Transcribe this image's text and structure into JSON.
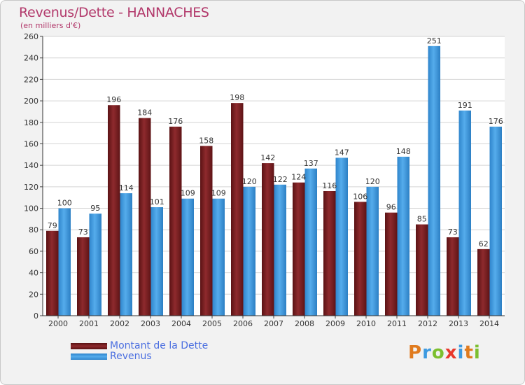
{
  "title": "Revenus/Dette - HANNACHES",
  "subtitle": "(en milliers d'€)",
  "colors": {
    "title": "#b2396b",
    "dette": "#7a1f22",
    "revenus": "#3d9ae0",
    "legend_text": "#4a6ee0"
  },
  "legend": {
    "dette_label": "Montant de la Dette",
    "revenus_label": "Revenus"
  },
  "logo": {
    "letters": [
      "P",
      "r",
      "o",
      "x",
      "i",
      "t",
      "i"
    ],
    "colors": [
      "#e07b1e",
      "#3d9ae0",
      "#7cbf2f",
      "#e8382c",
      "#3d9ae0",
      "#e07b1e",
      "#7cbf2f"
    ]
  },
  "chart_data": {
    "type": "bar",
    "categories": [
      "2000",
      "2001",
      "2002",
      "2003",
      "2004",
      "2005",
      "2006",
      "2007",
      "2008",
      "2009",
      "2010",
      "2011",
      "2012",
      "2013",
      "2014"
    ],
    "series": [
      {
        "name": "Montant de la Dette",
        "values": [
          79,
          73,
          196,
          184,
          176,
          158,
          198,
          142,
          124,
          116,
          106,
          96,
          85,
          73,
          62
        ]
      },
      {
        "name": "Revenus",
        "values": [
          100,
          95,
          114,
          101,
          109,
          109,
          120,
          122,
          137,
          147,
          120,
          148,
          251,
          191,
          176
        ]
      }
    ],
    "ylim": [
      0,
      260
    ],
    "yticks": [
      0,
      20,
      40,
      60,
      80,
      100,
      120,
      140,
      160,
      180,
      200,
      220,
      240,
      260
    ],
    "grid": true,
    "legend": "bottom-left"
  }
}
